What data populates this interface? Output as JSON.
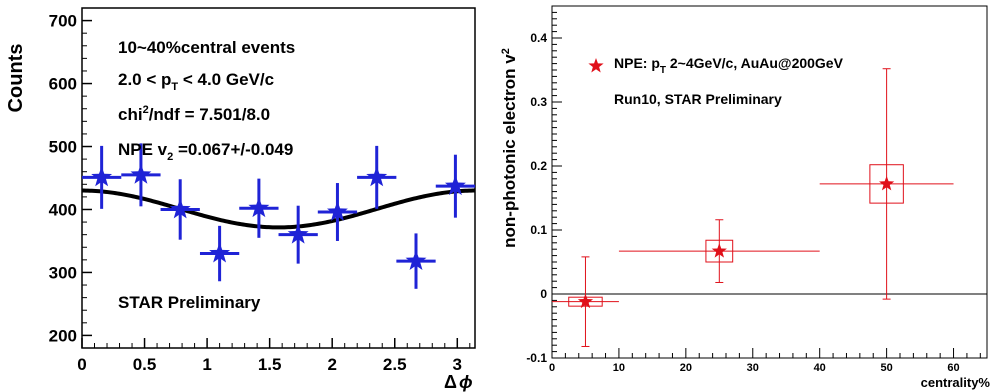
{
  "chart_data": [
    {
      "type": "scatter",
      "xlabel_main": "Δ",
      "xlabel_sym": "ϕ",
      "ylabel": "Counts",
      "xlim": [
        0,
        3.14159
      ],
      "ylim": [
        180,
        720
      ],
      "xticks": [
        "0",
        "0.5",
        "1",
        "1.5",
        "2",
        "2.5",
        "3"
      ],
      "yticks": [
        "200",
        "300",
        "400",
        "500",
        "600",
        "700"
      ],
      "annotations": {
        "events": "10~40%central events",
        "pt_range_pre": "2.0 < p",
        "pt_range_sub": "T",
        "pt_range_post": " < 4.0 GeV/c",
        "chi_pre": "chi",
        "chi_sup": "2",
        "chi_post": "/ndf = 7.501/8.0",
        "v2_pre": "NPE v",
        "v2_sub": "2",
        "v2_post": " =0.067+/-0.049",
        "preliminary": "STAR Preliminary"
      },
      "series": [
        {
          "style": "points",
          "color": "#1f23d6",
          "x": [
            0.157,
            0.471,
            0.785,
            1.1,
            1.414,
            1.728,
            2.042,
            2.356,
            2.67,
            2.985
          ],
          "y": [
            451,
            455,
            400,
            330,
            402,
            360,
            396,
            451,
            318,
            437
          ],
          "yerr": [
            50,
            50,
            48,
            44,
            47,
            46,
            46,
            50,
            44,
            50
          ],
          "xerr": 0.157
        },
        {
          "style": "fit",
          "color": "#000000",
          "formula": "A*(1+2*v2*cos(2*dphi))",
          "A": 400.8,
          "v2": 0.0365
        }
      ]
    },
    {
      "type": "scatter",
      "xlabel": "centrality%",
      "ylabel_pre": "non-photonic electron v",
      "ylabel_sub": "2",
      "xlim": [
        0,
        65
      ],
      "ylim": [
        -0.1,
        0.45
      ],
      "xticks": [
        "0",
        "10",
        "20",
        "30",
        "40",
        "50",
        "60"
      ],
      "yticks": [
        "-0.1",
        "0",
        "0.1",
        "0.2",
        "0.3",
        "0.4"
      ],
      "legend": {
        "label_pre": "NPE: p",
        "label_sub": "T",
        "label_post": " 2~4GeV/c, AuAu@200GeV",
        "line2": "Run10, STAR Preliminary"
      },
      "series": [
        {
          "style": "points",
          "color": "#e0101a",
          "x": [
            5,
            25,
            50
          ],
          "y": [
            -0.012,
            0.067,
            0.172
          ],
          "xerr_lo": [
            5,
            15,
            10
          ],
          "xerr_hi": [
            5,
            15,
            10
          ],
          "yerr": [
            0.07,
            0.049,
            0.18
          ],
          "sys_box_halfwidth": [
            2.5,
            2,
            2.5
          ],
          "sys_box_halfheight": [
            0.007,
            0.017,
            0.03
          ]
        }
      ]
    }
  ]
}
